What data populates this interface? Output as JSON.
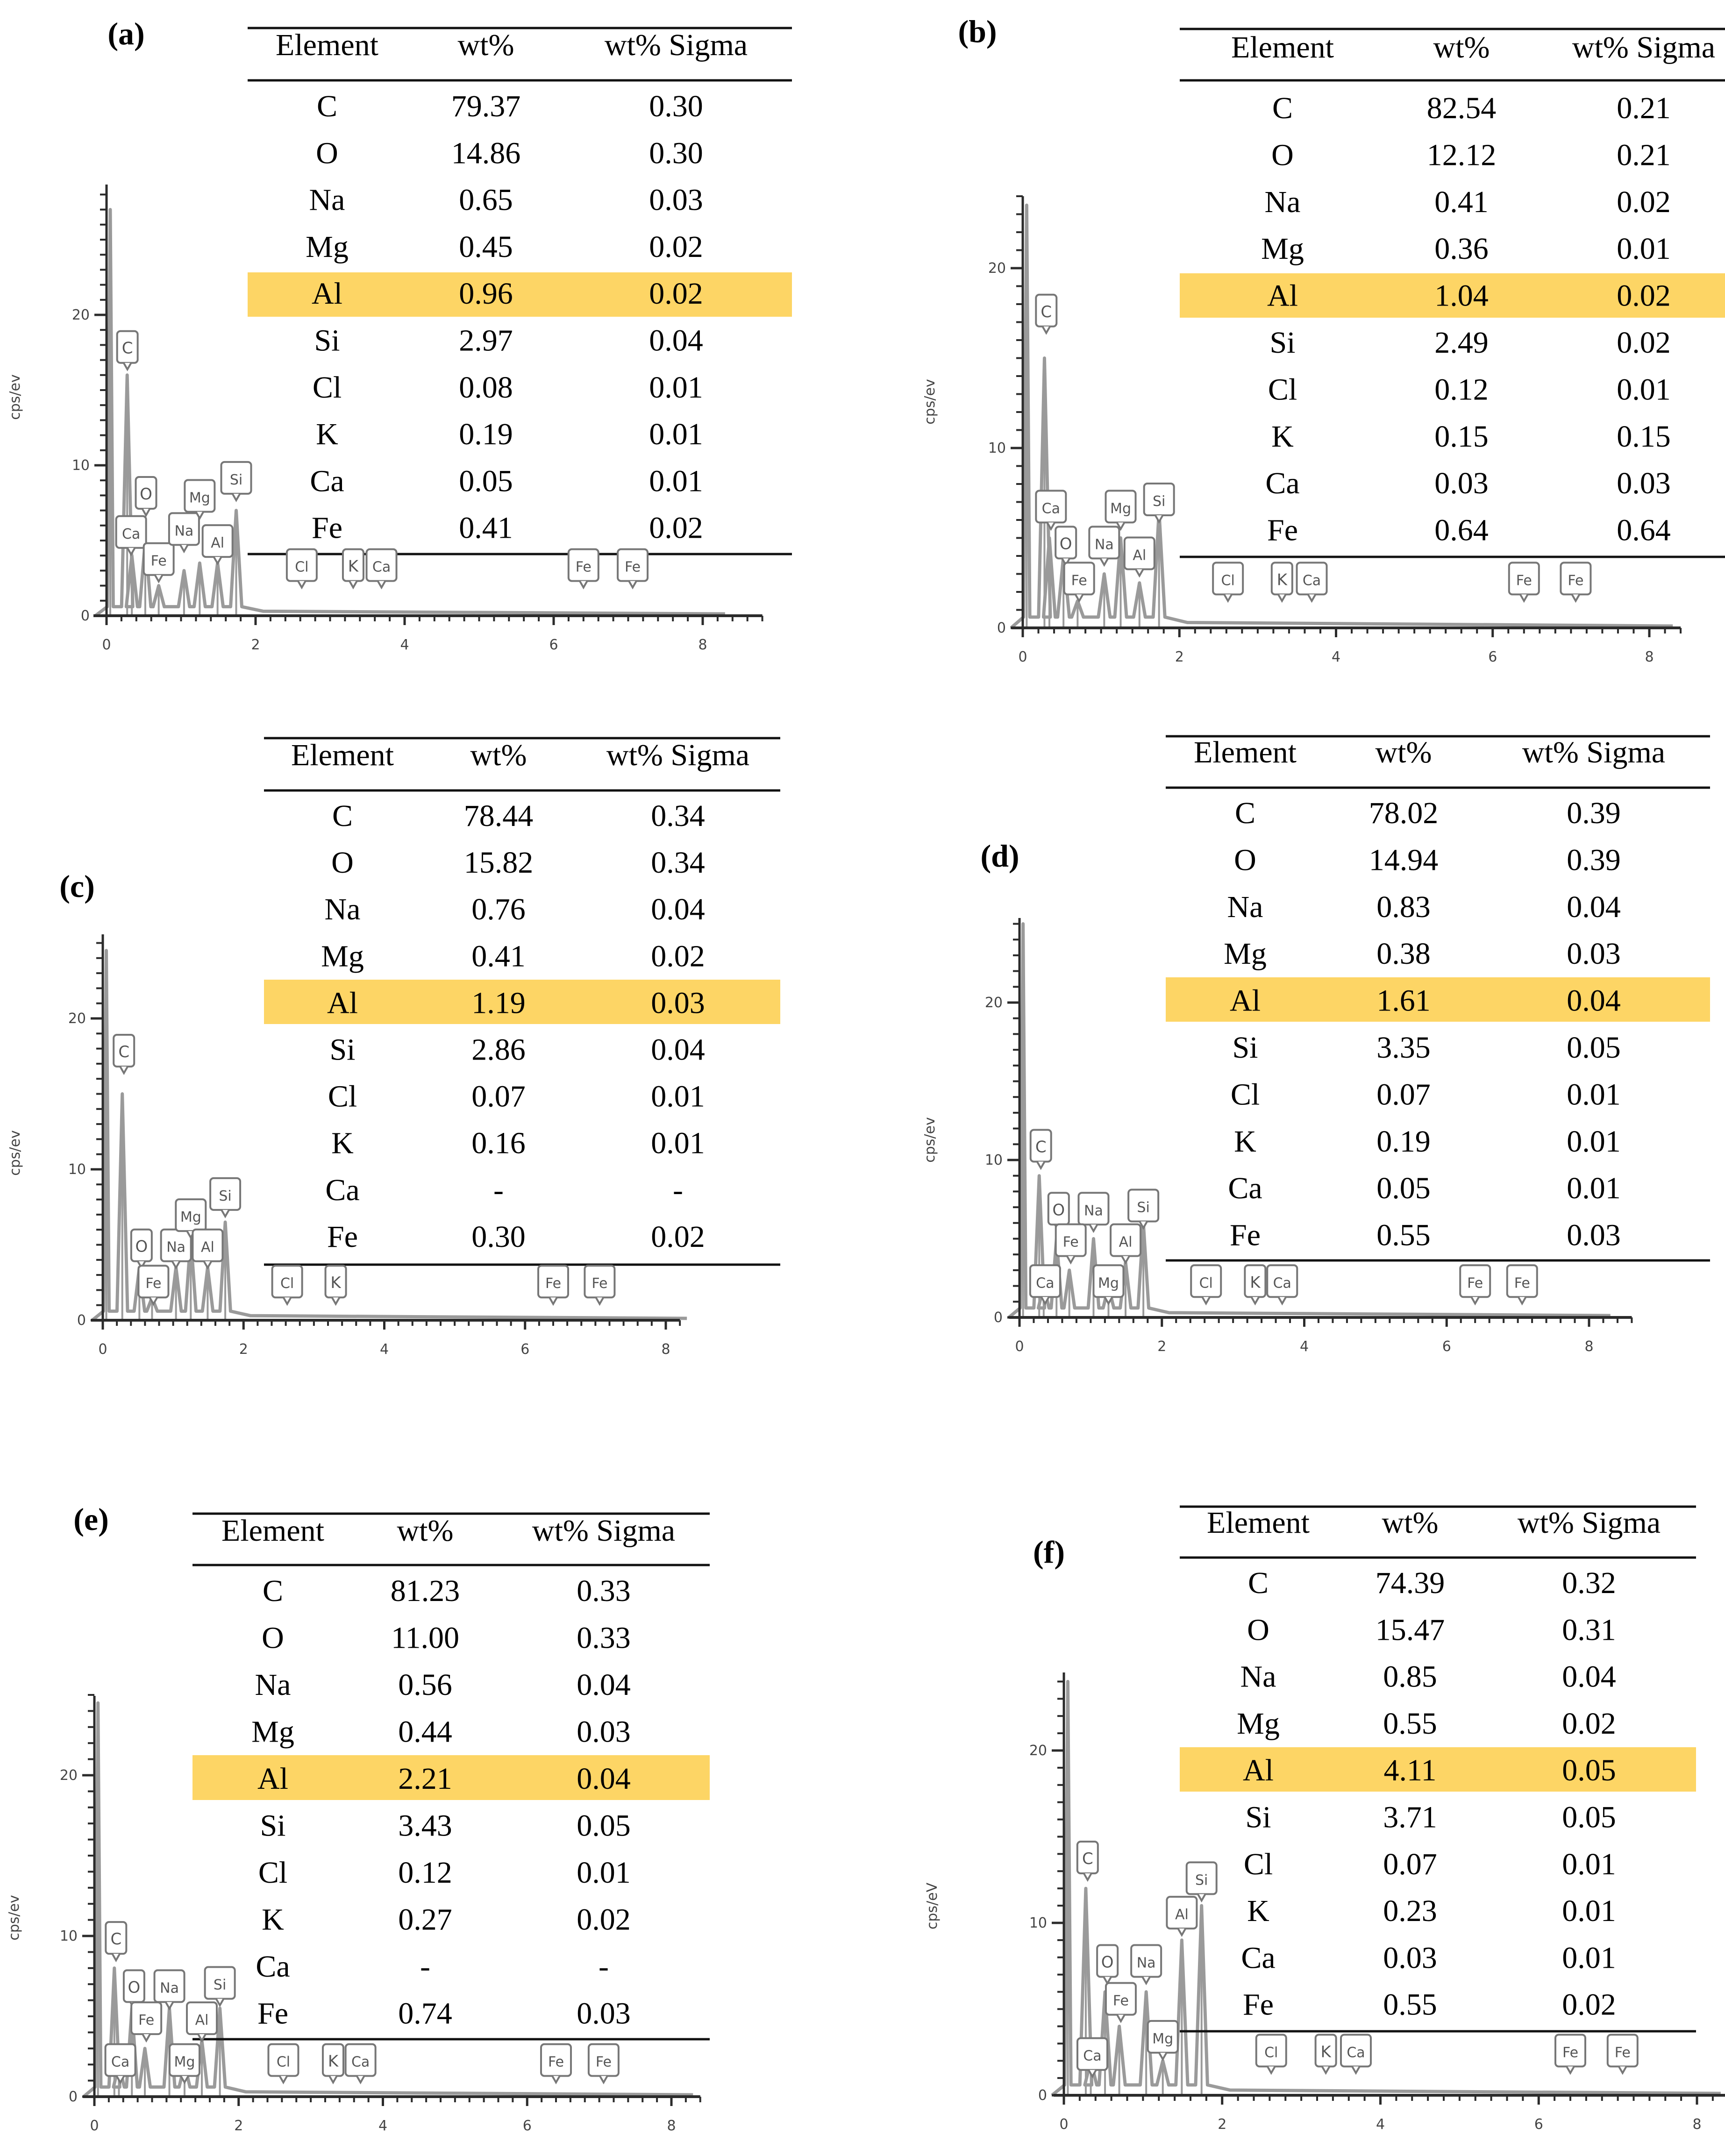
{
  "table_headers": [
    "Element",
    "wt%",
    "wt% Sigma"
  ],
  "highlight_color": "#fdd565",
  "axis_color": "#2b2b2b",
  "spectrum_color": "#9a9a9a",
  "chart_data": [
    {
      "panel": "(a)",
      "type": "table",
      "ylabel": "cps/ev",
      "x_ticks": [
        "0",
        "2",
        "4",
        "6",
        "8"
      ],
      "y_ticks": [
        "0",
        "10",
        "20"
      ],
      "xlim": [
        -0.2,
        8.8
      ],
      "ylim": [
        0,
        28
      ],
      "highlight": "Al",
      "rows": [
        [
          "C",
          "79.37",
          "0.30"
        ],
        [
          "O",
          "14.86",
          "0.30"
        ],
        [
          "Na",
          "0.65",
          "0.03"
        ],
        [
          "Mg",
          "0.45",
          "0.02"
        ],
        [
          "Al",
          "0.96",
          "0.02"
        ],
        [
          "Si",
          "2.97",
          "0.04"
        ],
        [
          "Cl",
          "0.08",
          "0.01"
        ],
        [
          "K",
          "0.19",
          "0.01"
        ],
        [
          "Ca",
          "0.05",
          "0.01"
        ],
        [
          "Fe",
          "0.41",
          "0.02"
        ]
      ],
      "spectrum_peaks": [
        [
          0.05,
          27
        ],
        [
          0.277,
          16
        ],
        [
          0.34,
          4
        ],
        [
          0.52,
          5
        ],
        [
          0.7,
          2
        ],
        [
          1.04,
          3
        ],
        [
          1.25,
          3.5
        ],
        [
          1.49,
          3.5
        ],
        [
          1.74,
          7
        ]
      ],
      "peak_labels": [
        {
          "t": "C",
          "x": 0.28,
          "y": 16.5
        },
        {
          "t": "O",
          "x": 0.53,
          "y": 6.8
        },
        {
          "t": "Ca",
          "x": 0.33,
          "y": 4.2
        },
        {
          "t": "Fe",
          "x": 0.7,
          "y": 2.4
        },
        {
          "t": "Na",
          "x": 1.04,
          "y": 4.4
        },
        {
          "t": "Mg",
          "x": 1.25,
          "y": 6.6
        },
        {
          "t": "Al",
          "x": 1.49,
          "y": 3.6
        },
        {
          "t": "Si",
          "x": 1.74,
          "y": 7.8
        },
        {
          "t": "Cl",
          "x": 2.62,
          "y": 2.0
        },
        {
          "t": "K",
          "x": 3.31,
          "y": 2.0
        },
        {
          "t": "Ca",
          "x": 3.69,
          "y": 2.0
        },
        {
          "t": "Fe",
          "x": 6.4,
          "y": 2.0
        },
        {
          "t": "Fe",
          "x": 7.06,
          "y": 2.0
        }
      ]
    },
    {
      "panel": "(b)",
      "type": "table",
      "ylabel": "cps/ev",
      "x_ticks": [
        "0",
        "2",
        "4",
        "6",
        "8"
      ],
      "y_ticks": [
        "0",
        "10",
        "20"
      ],
      "xlim": [
        -0.2,
        8.4
      ],
      "ylim": [
        0,
        24
      ],
      "highlight": "Al",
      "rows": [
        [
          "C",
          "82.54",
          "0.21"
        ],
        [
          "O",
          "12.12",
          "0.21"
        ],
        [
          "Na",
          "0.41",
          "0.02"
        ],
        [
          "Mg",
          "0.36",
          "0.01"
        ],
        [
          "Al",
          "1.04",
          "0.02"
        ],
        [
          "Si",
          "2.49",
          "0.02"
        ],
        [
          "Cl",
          "0.12",
          "0.01"
        ],
        [
          "K",
          "0.15",
          "0.15"
        ],
        [
          "Ca",
          "0.03",
          "0.03"
        ],
        [
          "Fe",
          "0.64",
          "0.64"
        ]
      ],
      "spectrum_peaks": [
        [
          0.05,
          23.5
        ],
        [
          0.277,
          15
        ],
        [
          0.34,
          5
        ],
        [
          0.52,
          4
        ],
        [
          0.7,
          1.5
        ],
        [
          1.04,
          3
        ],
        [
          1.25,
          5
        ],
        [
          1.49,
          2.5
        ],
        [
          1.74,
          6.5
        ]
      ],
      "peak_labels": [
        {
          "t": "C",
          "x": 0.3,
          "y": 16.5
        },
        {
          "t": "Ca",
          "x": 0.36,
          "y": 5.6
        },
        {
          "t": "O",
          "x": 0.55,
          "y": 3.6
        },
        {
          "t": "Fe",
          "x": 0.72,
          "y": 1.6
        },
        {
          "t": "Na",
          "x": 1.04,
          "y": 3.6
        },
        {
          "t": "Mg",
          "x": 1.25,
          "y": 5.6
        },
        {
          "t": "Al",
          "x": 1.49,
          "y": 3.0
        },
        {
          "t": "Si",
          "x": 1.74,
          "y": 6.0
        },
        {
          "t": "Cl",
          "x": 2.62,
          "y": 1.6
        },
        {
          "t": "K",
          "x": 3.31,
          "y": 1.6
        },
        {
          "t": "Ca",
          "x": 3.69,
          "y": 1.6
        },
        {
          "t": "Fe",
          "x": 6.4,
          "y": 1.6
        },
        {
          "t": "Fe",
          "x": 7.06,
          "y": 1.6
        }
      ]
    },
    {
      "panel": "(c)",
      "type": "table",
      "ylabel": "cps/ev",
      "x_ticks": [
        "0",
        "2",
        "4",
        "6",
        "8"
      ],
      "y_ticks": [
        "0",
        "10",
        "20"
      ],
      "xlim": [
        -0.2,
        8.2
      ],
      "ylim": [
        0,
        25
      ],
      "highlight": "Al",
      "rows": [
        [
          "C",
          "78.44",
          "0.34"
        ],
        [
          "O",
          "15.82",
          "0.34"
        ],
        [
          "Na",
          "0.76",
          "0.04"
        ],
        [
          "Mg",
          "0.41",
          "0.02"
        ],
        [
          "Al",
          "1.19",
          "0.03"
        ],
        [
          "Si",
          "2.86",
          "0.04"
        ],
        [
          "Cl",
          "0.07",
          "0.01"
        ],
        [
          "K",
          "0.16",
          "0.01"
        ],
        [
          "Ca",
          "-",
          "-"
        ],
        [
          "Fe",
          "0.30",
          "0.02"
        ]
      ],
      "spectrum_peaks": [
        [
          0.05,
          24.5
        ],
        [
          0.277,
          15
        ],
        [
          0.52,
          3.5
        ],
        [
          0.7,
          1.5
        ],
        [
          1.04,
          3.5
        ],
        [
          1.25,
          5.5
        ],
        [
          1.49,
          3.5
        ],
        [
          1.74,
          6.5
        ]
      ],
      "peak_labels": [
        {
          "t": "C",
          "x": 0.3,
          "y": 16.5
        },
        {
          "t": "O",
          "x": 0.55,
          "y": 3.6
        },
        {
          "t": "Fe",
          "x": 0.72,
          "y": 1.2
        },
        {
          "t": "Na",
          "x": 1.04,
          "y": 3.6
        },
        {
          "t": "Mg",
          "x": 1.25,
          "y": 5.6
        },
        {
          "t": "Al",
          "x": 1.49,
          "y": 3.6
        },
        {
          "t": "Si",
          "x": 1.74,
          "y": 7.0
        },
        {
          "t": "Cl",
          "x": 2.62,
          "y": 1.2
        },
        {
          "t": "K",
          "x": 3.31,
          "y": 1.2
        },
        {
          "t": "Fe",
          "x": 6.4,
          "y": 1.2
        },
        {
          "t": "Fe",
          "x": 7.06,
          "y": 1.2
        }
      ]
    },
    {
      "panel": "(d)",
      "type": "table",
      "ylabel": "cps/ev",
      "x_ticks": [
        "0",
        "2",
        "4",
        "6",
        "8"
      ],
      "y_ticks": [
        "0",
        "10",
        "20"
      ],
      "xlim": [
        -0.2,
        8.6
      ],
      "ylim": [
        0,
        25.5
      ],
      "highlight": "Al",
      "rows": [
        [
          "C",
          "78.02",
          "0.39"
        ],
        [
          "O",
          "14.94",
          "0.39"
        ],
        [
          "Na",
          "0.83",
          "0.04"
        ],
        [
          "Mg",
          "0.38",
          "0.03"
        ],
        [
          "Al",
          "1.61",
          "0.04"
        ],
        [
          "Si",
          "3.35",
          "0.05"
        ],
        [
          "Cl",
          "0.07",
          "0.01"
        ],
        [
          "K",
          "0.19",
          "0.01"
        ],
        [
          "Ca",
          "0.05",
          "0.01"
        ],
        [
          "Fe",
          "0.55",
          "0.03"
        ]
      ],
      "spectrum_peaks": [
        [
          0.05,
          25
        ],
        [
          0.277,
          9
        ],
        [
          0.34,
          2
        ],
        [
          0.52,
          5
        ],
        [
          0.7,
          3
        ],
        [
          1.04,
          5
        ],
        [
          1.25,
          2
        ],
        [
          1.49,
          3.5
        ],
        [
          1.74,
          6
        ]
      ],
      "peak_labels": [
        {
          "t": "C",
          "x": 0.3,
          "y": 9.6
        },
        {
          "t": "Ca",
          "x": 0.36,
          "y": 1.0
        },
        {
          "t": "O",
          "x": 0.55,
          "y": 5.6
        },
        {
          "t": "Na",
          "x": 1.04,
          "y": 5.6
        },
        {
          "t": "Fe",
          "x": 0.72,
          "y": 3.6
        },
        {
          "t": "Mg",
          "x": 1.25,
          "y": 1.0
        },
        {
          "t": "Al",
          "x": 1.49,
          "y": 3.6
        },
        {
          "t": "Si",
          "x": 1.74,
          "y": 5.8
        },
        {
          "t": "Cl",
          "x": 2.62,
          "y": 1.0
        },
        {
          "t": "K",
          "x": 3.31,
          "y": 1.0
        },
        {
          "t": "Ca",
          "x": 3.69,
          "y": 1.0
        },
        {
          "t": "Fe",
          "x": 6.4,
          "y": 1.0
        },
        {
          "t": "Fe",
          "x": 7.06,
          "y": 1.0
        }
      ]
    },
    {
      "panel": "(e)",
      "type": "table",
      "ylabel": "cps/ev",
      "x_ticks": [
        "0",
        "2",
        "4",
        "6",
        "8"
      ],
      "y_ticks": [
        "0",
        "10",
        "20"
      ],
      "xlim": [
        -0.2,
        8.4
      ],
      "ylim": [
        0,
        25
      ],
      "highlight": "Al",
      "rows": [
        [
          "C",
          "81.23",
          "0.33"
        ],
        [
          "O",
          "11.00",
          "0.33"
        ],
        [
          "Na",
          "0.56",
          "0.04"
        ],
        [
          "Mg",
          "0.44",
          "0.03"
        ],
        [
          "Al",
          "2.21",
          "0.04"
        ],
        [
          "Si",
          "3.43",
          "0.05"
        ],
        [
          "Cl",
          "0.12",
          "0.01"
        ],
        [
          "K",
          "0.27",
          "0.02"
        ],
        [
          "Ca",
          "-",
          "-"
        ],
        [
          "Fe",
          "0.74",
          "0.03"
        ]
      ],
      "spectrum_peaks": [
        [
          0.05,
          24.5
        ],
        [
          0.277,
          8
        ],
        [
          0.34,
          2
        ],
        [
          0.52,
          5.5
        ],
        [
          0.7,
          3
        ],
        [
          1.04,
          5.5
        ],
        [
          1.25,
          2
        ],
        [
          1.49,
          3.5
        ],
        [
          1.74,
          5.5
        ]
      ],
      "peak_labels": [
        {
          "t": "C",
          "x": 0.3,
          "y": 8.6
        },
        {
          "t": "Ca",
          "x": 0.36,
          "y": 1.0
        },
        {
          "t": "O",
          "x": 0.55,
          "y": 5.6
        },
        {
          "t": "Na",
          "x": 1.04,
          "y": 5.6
        },
        {
          "t": "Fe",
          "x": 0.72,
          "y": 3.6
        },
        {
          "t": "Mg",
          "x": 1.25,
          "y": 1.0
        },
        {
          "t": "Al",
          "x": 1.49,
          "y": 3.6
        },
        {
          "t": "Si",
          "x": 1.74,
          "y": 5.8
        },
        {
          "t": "Cl",
          "x": 2.62,
          "y": 1.0
        },
        {
          "t": "K",
          "x": 3.31,
          "y": 1.0
        },
        {
          "t": "Ca",
          "x": 3.69,
          "y": 1.0
        },
        {
          "t": "Fe",
          "x": 6.4,
          "y": 1.0
        },
        {
          "t": "Fe",
          "x": 7.06,
          "y": 1.0
        }
      ]
    },
    {
      "panel": "(f)",
      "type": "table",
      "ylabel": "cps/eV",
      "x_ticks": [
        "0",
        "2",
        "4",
        "6",
        "8"
      ],
      "y_ticks": [
        "0",
        "10",
        "20"
      ],
      "xlim": [
        -0.2,
        8.4
      ],
      "ylim": [
        0,
        24.5
      ],
      "highlight": "Al",
      "rows": [
        [
          "C",
          "74.39",
          "0.32"
        ],
        [
          "O",
          "15.47",
          "0.31"
        ],
        [
          "Na",
          "0.85",
          "0.04"
        ],
        [
          "Mg",
          "0.55",
          "0.02"
        ],
        [
          "Al",
          "4.11",
          "0.05"
        ],
        [
          "Si",
          "3.71",
          "0.05"
        ],
        [
          "Cl",
          "0.07",
          "0.01"
        ],
        [
          "K",
          "0.23",
          "0.01"
        ],
        [
          "Ca",
          "0.03",
          "0.01"
        ],
        [
          "Fe",
          "0.55",
          "0.02"
        ]
      ],
      "spectrum_peaks": [
        [
          0.05,
          24
        ],
        [
          0.277,
          12
        ],
        [
          0.34,
          2
        ],
        [
          0.52,
          6
        ],
        [
          0.7,
          4
        ],
        [
          1.04,
          6
        ],
        [
          1.25,
          2
        ],
        [
          1.49,
          9
        ],
        [
          1.74,
          11
        ]
      ],
      "peak_labels": [
        {
          "t": "C",
          "x": 0.3,
          "y": 12.6
        },
        {
          "t": "Ca",
          "x": 0.36,
          "y": 1.2
        },
        {
          "t": "O",
          "x": 0.55,
          "y": 6.6
        },
        {
          "t": "Na",
          "x": 1.04,
          "y": 6.6
        },
        {
          "t": "Fe",
          "x": 0.72,
          "y": 4.4
        },
        {
          "t": "Mg",
          "x": 1.25,
          "y": 2.2
        },
        {
          "t": "Al",
          "x": 1.49,
          "y": 9.4
        },
        {
          "t": "Si",
          "x": 1.74,
          "y": 11.4
        },
        {
          "t": "Cl",
          "x": 2.62,
          "y": 1.4
        },
        {
          "t": "K",
          "x": 3.31,
          "y": 1.4
        },
        {
          "t": "Ca",
          "x": 3.69,
          "y": 1.4
        },
        {
          "t": "Fe",
          "x": 6.4,
          "y": 1.4
        },
        {
          "t": "Fe",
          "x": 7.06,
          "y": 1.4
        }
      ]
    }
  ]
}
